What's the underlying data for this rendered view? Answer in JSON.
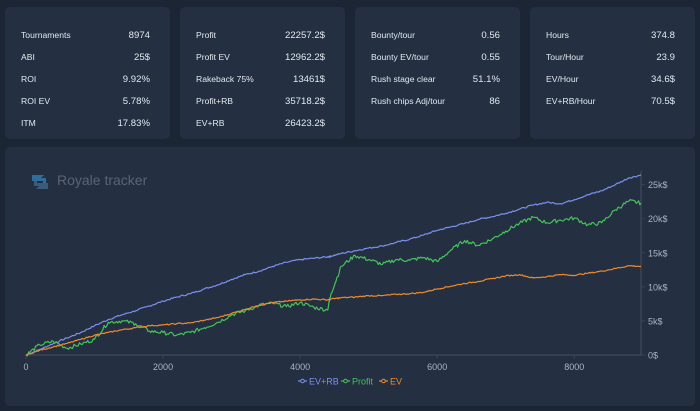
{
  "stats": [
    {
      "rows": [
        {
          "label": "Tournaments",
          "value": "8974"
        },
        {
          "label": "ABI",
          "value": "25$"
        },
        {
          "label": "ROI",
          "value": "9.92%"
        },
        {
          "label": "ROI EV",
          "value": "5.78%"
        },
        {
          "label": "ITM",
          "value": "17.83%"
        }
      ]
    },
    {
      "rows": [
        {
          "label": "Profit",
          "value": "22257.2$"
        },
        {
          "label": "Profit EV",
          "value": "12962.2$"
        },
        {
          "label": "Rakeback 75%",
          "value": "13461$"
        },
        {
          "label": "Profit+RB",
          "value": "35718.2$"
        },
        {
          "label": "EV+RB",
          "value": "26423.2$"
        }
      ]
    },
    {
      "rows": [
        {
          "label": "Bounty/tour",
          "value": "0.56"
        },
        {
          "label": "Bounty EV/tour",
          "value": "0.55"
        },
        {
          "label": "Rush stage clear",
          "value": "51.1%"
        },
        {
          "label": "Rush chips Adj/tour",
          "value": "86"
        }
      ]
    },
    {
      "rows": [
        {
          "label": "Hours",
          "value": "374.8"
        },
        {
          "label": "Tour/Hour",
          "value": "23.9"
        },
        {
          "label": "EV/Hour",
          "value": "34.6$"
        },
        {
          "label": "EV+RB/Hour",
          "value": "70.5$"
        }
      ]
    }
  ],
  "watermark": {
    "text": "Royale tracker",
    "icon": "refresh-logo-icon"
  },
  "chart_data": {
    "type": "line",
    "title": "",
    "xlabel": "",
    "ylabel": "",
    "xlim": [
      0,
      8974
    ],
    "ylim": [
      0,
      27000
    ],
    "x_ticks": [
      0,
      2000,
      4000,
      6000,
      8000
    ],
    "x_tick_labels": [
      "0",
      "2000",
      "4000",
      "6000",
      "8000"
    ],
    "y_ticks": [
      0,
      5000,
      10000,
      15000,
      20000,
      25000
    ],
    "y_tick_labels": [
      "0$",
      "5k$",
      "10k$",
      "15k$",
      "20k$",
      "25k$"
    ],
    "legend_position": "bottom-center",
    "grid": false,
    "x": [
      0,
      200,
      400,
      600,
      800,
      1000,
      1200,
      1400,
      1600,
      1800,
      2000,
      2200,
      2400,
      2600,
      2800,
      3000,
      3200,
      3400,
      3600,
      3800,
      4000,
      4200,
      4400,
      4450,
      4600,
      4800,
      5000,
      5200,
      5400,
      5600,
      5800,
      6000,
      6200,
      6400,
      6600,
      6800,
      7000,
      7200,
      7400,
      7600,
      7800,
      8000,
      8200,
      8400,
      8600,
      8800,
      8974
    ],
    "series": [
      {
        "name": "EV+RB",
        "color": "#7b8ff0",
        "values": [
          0,
          800,
          1700,
          2500,
          3300,
          4300,
          5200,
          5900,
          6500,
          7200,
          7900,
          8500,
          9000,
          9700,
          10300,
          11100,
          11800,
          12300,
          13000,
          13600,
          14000,
          14200,
          14400,
          14500,
          14900,
          15300,
          15700,
          16000,
          16500,
          17000,
          17600,
          18300,
          18800,
          19300,
          19900,
          20300,
          20800,
          21400,
          22000,
          22400,
          22200,
          22800,
          23500,
          24100,
          25000,
          26000,
          26400
        ]
      },
      {
        "name": "Profit",
        "color": "#45c35a",
        "values": [
          0,
          1500,
          2000,
          1000,
          1600,
          2300,
          4800,
          5000,
          4600,
          3500,
          3300,
          2900,
          3300,
          4000,
          4800,
          5900,
          6500,
          7300,
          7600,
          7100,
          7700,
          7000,
          6600,
          9000,
          13000,
          14600,
          14000,
          13300,
          14000,
          13900,
          14300,
          13700,
          15400,
          16800,
          16100,
          17000,
          18200,
          19300,
          20200,
          19400,
          19800,
          20100,
          19100,
          19400,
          21300,
          22600,
          22300
        ]
      },
      {
        "name": "EV",
        "color": "#ef8a2c",
        "values": [
          0,
          700,
          1200,
          1700,
          2300,
          2900,
          3300,
          3700,
          4000,
          4300,
          4400,
          4600,
          4700,
          5100,
          5500,
          6100,
          6700,
          7300,
          7700,
          7900,
          8100,
          8200,
          8100,
          8200,
          8400,
          8500,
          8700,
          8700,
          8900,
          9000,
          9200,
          9700,
          10100,
          10500,
          10800,
          11200,
          11600,
          11800,
          11300,
          11500,
          11800,
          11700,
          12000,
          12300,
          12700,
          13100,
          13000
        ]
      }
    ]
  }
}
